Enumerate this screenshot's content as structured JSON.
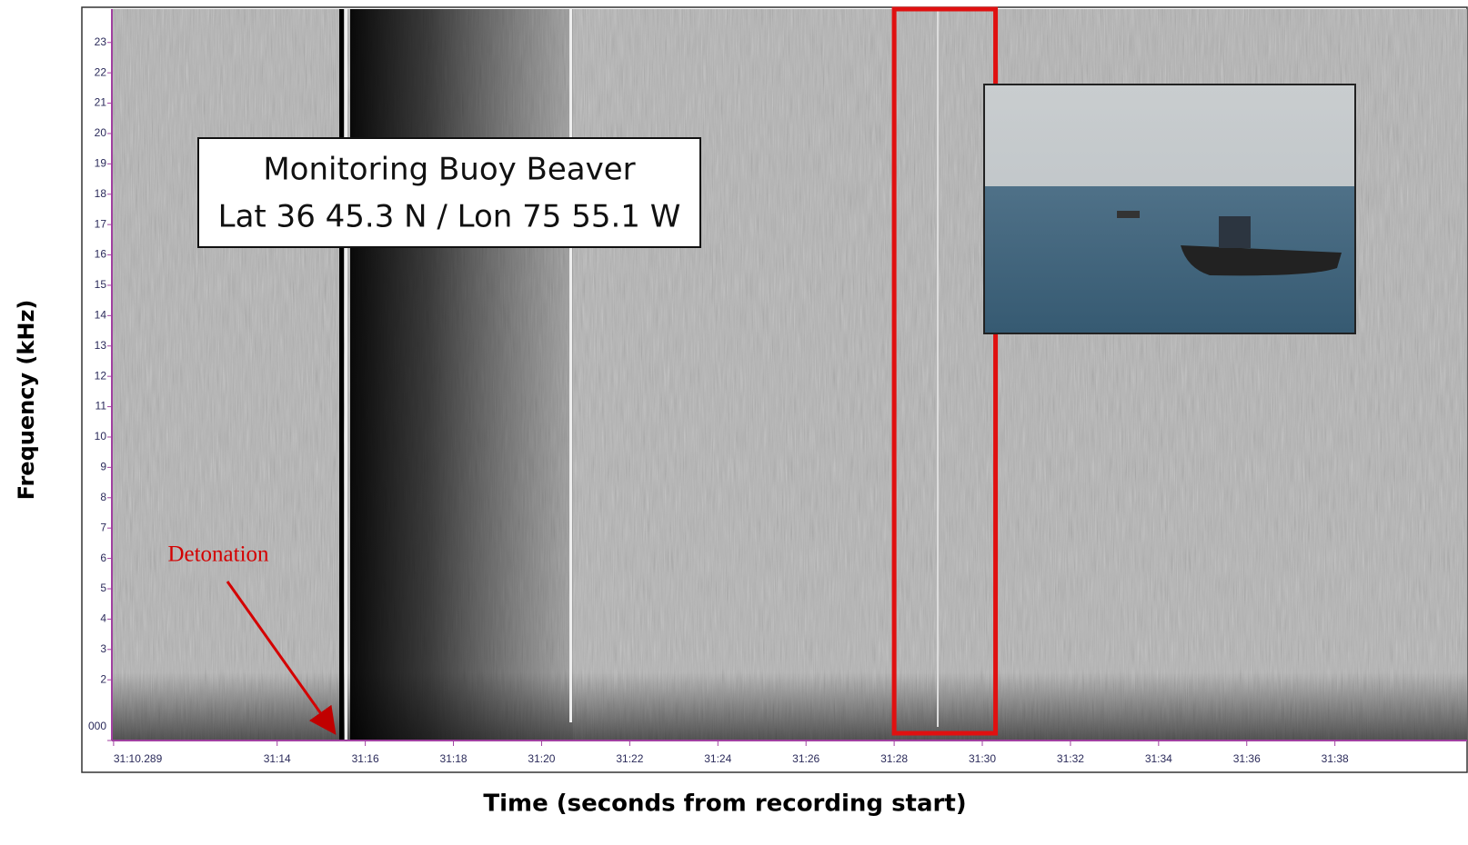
{
  "chart_data": {
    "type": "spectrogram",
    "xlabel": "Time (seconds from recording start)",
    "ylabel": "Frequency (kHz)",
    "xlim": [
      10.25,
      40.05
    ],
    "ylim": [
      0,
      24.1
    ],
    "xticks": [
      {
        "value": 10.289,
        "label": "31:10.289"
      },
      {
        "value": 14,
        "label": "31:14"
      },
      {
        "value": 16,
        "label": "31:16"
      },
      {
        "value": 18,
        "label": "31:18"
      },
      {
        "value": 20,
        "label": "31:20"
      },
      {
        "value": 22,
        "label": "31:22"
      },
      {
        "value": 24,
        "label": "31:24"
      },
      {
        "value": 26,
        "label": "31:26"
      },
      {
        "value": 28,
        "label": "31:28"
      },
      {
        "value": 30,
        "label": "31:30"
      },
      {
        "value": 32,
        "label": "31:32"
      },
      {
        "value": 34,
        "label": "31:34"
      },
      {
        "value": 36,
        "label": "31:36"
      },
      {
        "value": 38,
        "label": "31:38"
      }
    ],
    "yticks": [
      {
        "value": 0,
        "label": "000"
      },
      2,
      3,
      4,
      5,
      6,
      7,
      8,
      9,
      10,
      11,
      12,
      13,
      14,
      15,
      16,
      17,
      18,
      19,
      20,
      21,
      22,
      23
    ],
    "info_box": [
      "Monitoring Buoy Beaver",
      "Lat 36 45.3 N / Lon 75 55.1 W"
    ],
    "event_label": "Detonation",
    "event_color": "#d40000",
    "highlight": {
      "xrange": [
        28,
        30.3
      ],
      "color": "#e01010"
    }
  }
}
